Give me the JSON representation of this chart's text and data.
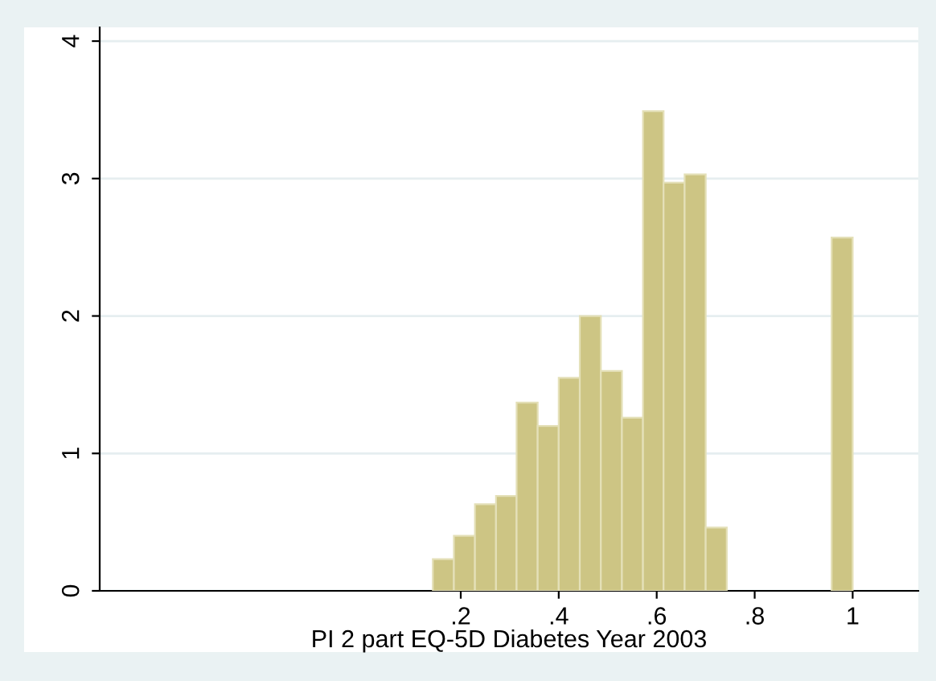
{
  "chart_data": {
    "type": "histogram",
    "xlabel": "PI 2 part EQ-5D Diabetes Year 2003",
    "bins": [
      0.143,
      0.186,
      0.229,
      0.272,
      0.314,
      0.357,
      0.4,
      0.443,
      0.486,
      0.529,
      0.572,
      0.614,
      0.657,
      0.7,
      0.743,
      0.957,
      1.0
    ],
    "values": [
      0.23,
      0.4,
      0.63,
      0.69,
      1.37,
      1.2,
      1.55,
      2.0,
      1.6,
      1.26,
      3.49,
      2.97,
      3.03,
      0.46,
      0,
      2.57
    ],
    "color": "#cdc584",
    "xlim": [
      -0.537,
      1.134
    ],
    "ylim": [
      0,
      4.1
    ],
    "xticks": [
      {
        "value": 0.2,
        "label": ".2"
      },
      {
        "value": 0.4,
        "label": ".4"
      },
      {
        "value": 0.6,
        "label": ".6"
      },
      {
        "value": 0.8,
        "label": ".8"
      },
      1
    ],
    "yticks": [
      0,
      1,
      2,
      3,
      4
    ],
    "grid": "y"
  }
}
